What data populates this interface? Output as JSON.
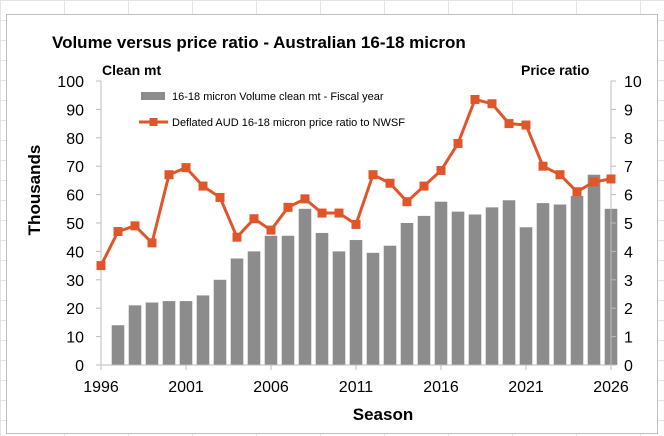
{
  "chart_data": {
    "type": "bar",
    "title": "Volume versus price ratio - Australian 16-18 micron",
    "left_unit_label": "Clean mt",
    "right_unit_label": "Price ratio",
    "xlabel": "Season",
    "ylabel": "Thousands",
    "x_ticks": [
      "1996",
      "2001",
      "2006",
      "2011",
      "2016",
      "2021",
      "2026"
    ],
    "y_ticks": [
      "0",
      "10",
      "20",
      "30",
      "40",
      "50",
      "60",
      "70",
      "80",
      "90",
      "100"
    ],
    "y2_ticks": [
      "0",
      "1",
      "2",
      "3",
      "4",
      "5",
      "6",
      "7",
      "8",
      "9",
      "10"
    ],
    "xlim": [
      1996,
      2026
    ],
    "ylim": [
      0,
      100
    ],
    "y2lim": [
      0,
      10
    ],
    "grid": false,
    "legend_position": "top-left",
    "colors": {
      "bar": "#8c8c8c",
      "line": "#e0562a"
    },
    "series": [
      {
        "name": "16-18 micron Volume clean mt - Fiscal year",
        "type": "bar",
        "axis": "left",
        "x": [
          1997,
          1998,
          1999,
          2000,
          2001,
          2002,
          2003,
          2004,
          2005,
          2006,
          2007,
          2008,
          2009,
          2010,
          2011,
          2012,
          2013,
          2014,
          2015,
          2016,
          2017,
          2018,
          2019,
          2020,
          2021,
          2022,
          2023,
          2024,
          2025,
          2026
        ],
        "values": [
          14,
          21,
          22,
          22.5,
          22.5,
          24.5,
          30,
          37.5,
          40,
          45.5,
          45.5,
          55,
          46.5,
          40,
          44,
          39.5,
          42,
          50,
          52.5,
          57.5,
          54,
          53,
          55.5,
          58,
          48.5,
          57,
          56.5,
          59.5,
          67,
          55
        ]
      },
      {
        "name": "Deflated AUD 16-18 micron price ratio to NWSF",
        "type": "line",
        "axis": "right",
        "x": [
          1996,
          1997,
          1998,
          1999,
          2000,
          2001,
          2002,
          2003,
          2004,
          2005,
          2006,
          2007,
          2008,
          2009,
          2010,
          2011,
          2012,
          2013,
          2014,
          2015,
          2016,
          2017,
          2018,
          2019,
          2020,
          2021,
          2022,
          2023,
          2024,
          2025,
          2026
        ],
        "values": [
          3.5,
          4.7,
          4.9,
          4.3,
          6.7,
          6.95,
          6.3,
          5.9,
          4.5,
          5.15,
          4.75,
          5.55,
          5.85,
          5.35,
          5.35,
          4.95,
          6.7,
          6.4,
          5.75,
          6.3,
          6.85,
          7.8,
          9.35,
          9.2,
          8.5,
          8.45,
          7.0,
          6.7,
          6.1,
          6.45,
          6.55
        ]
      }
    ]
  }
}
